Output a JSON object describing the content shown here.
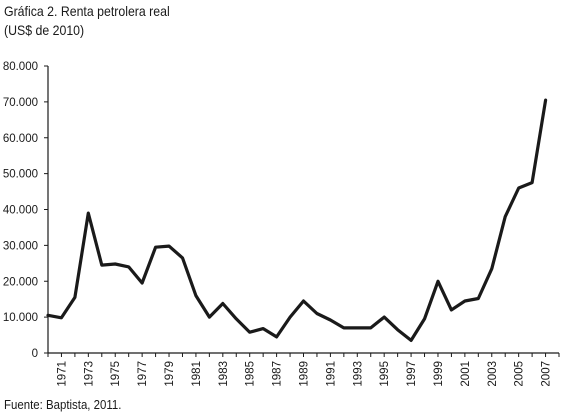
{
  "chart_data": {
    "type": "line",
    "title": "Gráfica 2. Renta petrolera real",
    "subtitle": "(US$ de 2010)",
    "source": "Fuente: Baptista, 2011.",
    "xlabel": "",
    "ylabel": "",
    "ylim": [
      0,
      80000
    ],
    "yticks": [
      0,
      10000,
      20000,
      30000,
      40000,
      50000,
      60000,
      70000,
      80000
    ],
    "ytick_labels": [
      "0",
      "10.000",
      "20.000",
      "30.000",
      "40.000",
      "50.000",
      "60.000",
      "70.000",
      "80.000"
    ],
    "xtick_labels": [
      "1971",
      "1973",
      "1975",
      "1977",
      "1979",
      "1981",
      "1983",
      "1985",
      "1987",
      "1989",
      "1991",
      "1993",
      "1995",
      "1997",
      "1999",
      "2001",
      "2003",
      "2005",
      "2007"
    ],
    "grid": false,
    "legend": "none",
    "line_color": "#1a1a1a",
    "x": [
      1970,
      1971,
      1972,
      1973,
      1974,
      1975,
      1976,
      1977,
      1978,
      1979,
      1980,
      1981,
      1982,
      1983,
      1984,
      1985,
      1986,
      1987,
      1988,
      1989,
      1990,
      1991,
      1992,
      1993,
      1994,
      1995,
      1996,
      1997,
      1998,
      1999,
      2000,
      2001,
      2002,
      2003,
      2004,
      2005,
      2006,
      2007,
      2008
    ],
    "values": [
      10500,
      9800,
      15500,
      39000,
      24500,
      24800,
      24000,
      19500,
      29500,
      29800,
      26500,
      16000,
      10000,
      13800,
      9500,
      5800,
      6800,
      4500,
      10000,
      14500,
      11000,
      9200,
      7000,
      7000,
      7000,
      10000,
      6500,
      3500,
      9500,
      20000,
      12000,
      14500,
      15200,
      23500,
      38000,
      46000,
      47500,
      70500,
      null
    ],
    "x_range": [
      1970,
      2008
    ]
  }
}
